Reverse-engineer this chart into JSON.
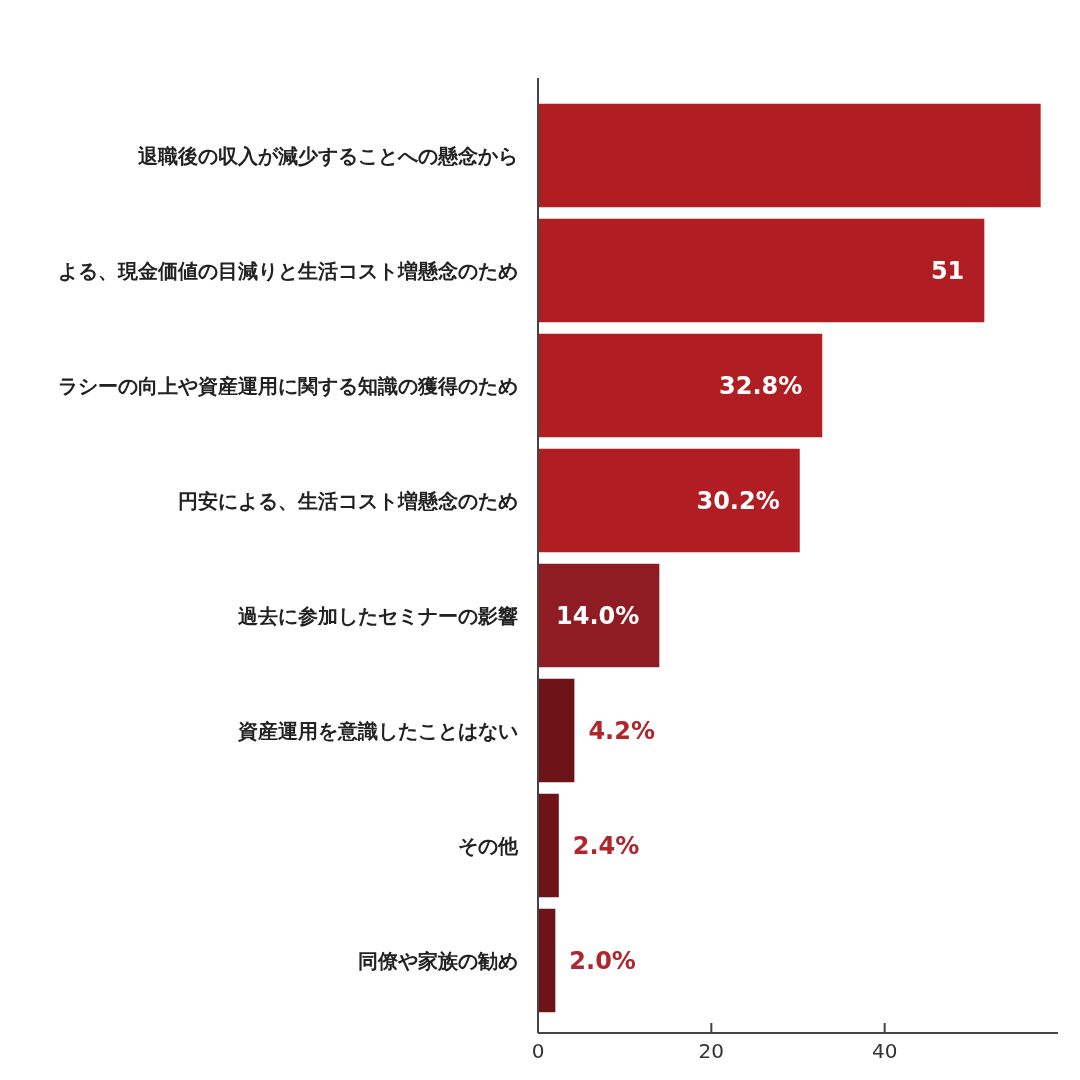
{
  "chart_data": {
    "type": "bar",
    "orientation": "horizontal",
    "categories": [
      "退職後の収入が減少することへの懸念から",
      "よる、現金価値の目減りと生活コスト増懸念のため",
      "ラシーの向上や資産運用に関する知識の獲得のため",
      "円安による、生活コスト増懸念のため",
      "過去に参加したセミナーの影響",
      "資産運用を意識したことはない",
      "その他",
      "同僚や家族の勧め"
    ],
    "values": [
      58,
      51.5,
      32.8,
      30.2,
      14.0,
      4.2,
      2.4,
      2.0
    ],
    "colors": [
      "#b01e23",
      "#b01e23",
      "#b01e23",
      "#b01e23",
      "#8e1c22",
      "#6e1419",
      "#6e1419",
      "#6e1419"
    ],
    "value_labels": [
      null,
      "51",
      "32.8%",
      "30.2%",
      "14.0%",
      "4.2%",
      "2.4%",
      "2.0%"
    ],
    "xlim": [
      0,
      60
    ],
    "xticks": [
      0,
      20,
      40
    ]
  }
}
